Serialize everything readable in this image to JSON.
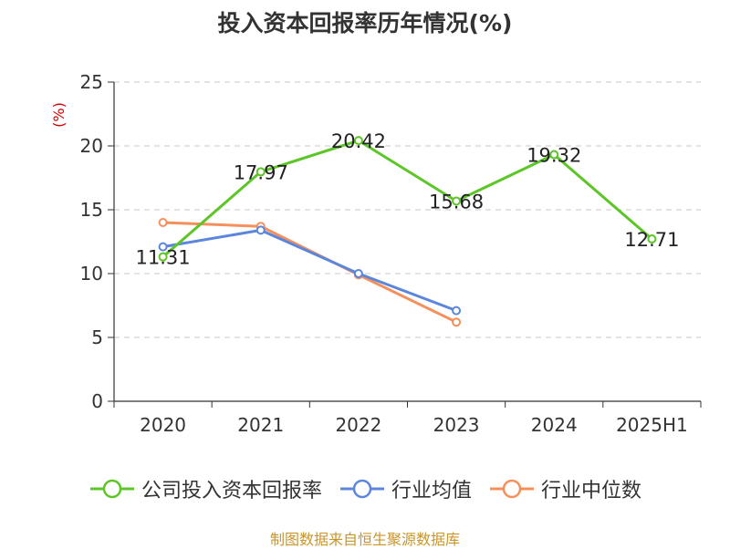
{
  "chart_data": {
    "type": "line",
    "title": "投入资本回报率历年情况(%)",
    "ylabel": "(%)",
    "categories": [
      "2020",
      "2021",
      "2022",
      "2023",
      "2024",
      "2025H1"
    ],
    "ylim": [
      0,
      25
    ],
    "yticks": [
      "0",
      "5",
      "10",
      "15",
      "20",
      "25"
    ],
    "grid": true,
    "legend_position": "bottom",
    "series": [
      {
        "name": "公司投入资本回报率",
        "color": "#5cc627",
        "values": [
          11.31,
          17.97,
          20.42,
          15.68,
          19.32,
          12.71
        ],
        "labels": [
          "11.31",
          "17.97",
          "20.42",
          "15.68",
          "19.32",
          "12.71"
        ]
      },
      {
        "name": "行业均值",
        "color": "#5b86dc",
        "values": [
          12.1,
          13.4,
          10.0,
          7.1,
          null,
          null
        ]
      },
      {
        "name": "行业中位数",
        "color": "#f58f5b",
        "values": [
          14.0,
          13.7,
          9.9,
          6.2,
          null,
          null
        ]
      }
    ],
    "ylabel_color": "#cc0000"
  },
  "footer": {
    "source": "制图数据来自恒生聚源数据库"
  }
}
